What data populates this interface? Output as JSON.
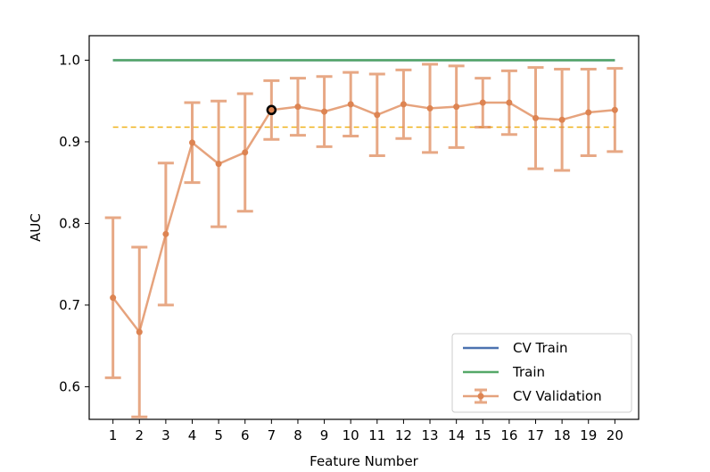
{
  "chart_data": {
    "type": "line",
    "xlabel": "Feature Number",
    "ylabel": "AUC",
    "x": [
      1,
      2,
      3,
      4,
      5,
      6,
      7,
      8,
      9,
      10,
      11,
      12,
      13,
      14,
      15,
      16,
      17,
      18,
      19,
      20
    ],
    "xlim": [
      0.1,
      20.9
    ],
    "ylim": [
      0.56,
      1.03
    ],
    "yticks": [
      0.6,
      0.7,
      0.8,
      0.9,
      1.0
    ],
    "ytick_labels": [
      "0.6",
      "0.7",
      "0.8",
      "0.9",
      "1.0"
    ],
    "xtick_labels": [
      "1",
      "2",
      "3",
      "4",
      "5",
      "6",
      "7",
      "8",
      "9",
      "10",
      "11",
      "12",
      "13",
      "14",
      "15",
      "16",
      "17",
      "18",
      "19",
      "20"
    ],
    "grid": false,
    "legend_position": "bottom-right",
    "series": [
      {
        "name": "CV Train",
        "color": "#4c72b0",
        "values": [
          1.0,
          1.0,
          1.0,
          1.0,
          1.0,
          1.0,
          1.0,
          1.0,
          1.0,
          1.0,
          1.0,
          1.0,
          1.0,
          1.0,
          1.0,
          1.0,
          1.0,
          1.0,
          1.0,
          1.0
        ]
      },
      {
        "name": "Train",
        "color": "#55a868",
        "values": [
          1.0,
          1.0,
          1.0,
          1.0,
          1.0,
          1.0,
          1.0,
          1.0,
          1.0,
          1.0,
          1.0,
          1.0,
          1.0,
          1.0,
          1.0,
          1.0,
          1.0,
          1.0,
          1.0,
          1.0
        ]
      },
      {
        "name": "CV Validation",
        "color": "#dd8452",
        "values": [
          0.709,
          0.667,
          0.787,
          0.899,
          0.873,
          0.887,
          0.939,
          0.943,
          0.937,
          0.946,
          0.933,
          0.946,
          0.941,
          0.943,
          0.948,
          0.948,
          0.929,
          0.927,
          0.936,
          0.939
        ],
        "error": [
          0.098,
          0.104,
          0.087,
          0.049,
          0.077,
          0.072,
          0.036,
          0.035,
          0.043,
          0.039,
          0.05,
          0.042,
          0.054,
          0.05,
          0.03,
          0.039,
          0.062,
          0.062,
          0.053,
          0.051
        ]
      }
    ],
    "reference_line": {
      "y": 0.918,
      "color": "#f0b21a",
      "style": "dashed"
    },
    "highlight_point": {
      "x": 7,
      "y": 0.939
    }
  }
}
